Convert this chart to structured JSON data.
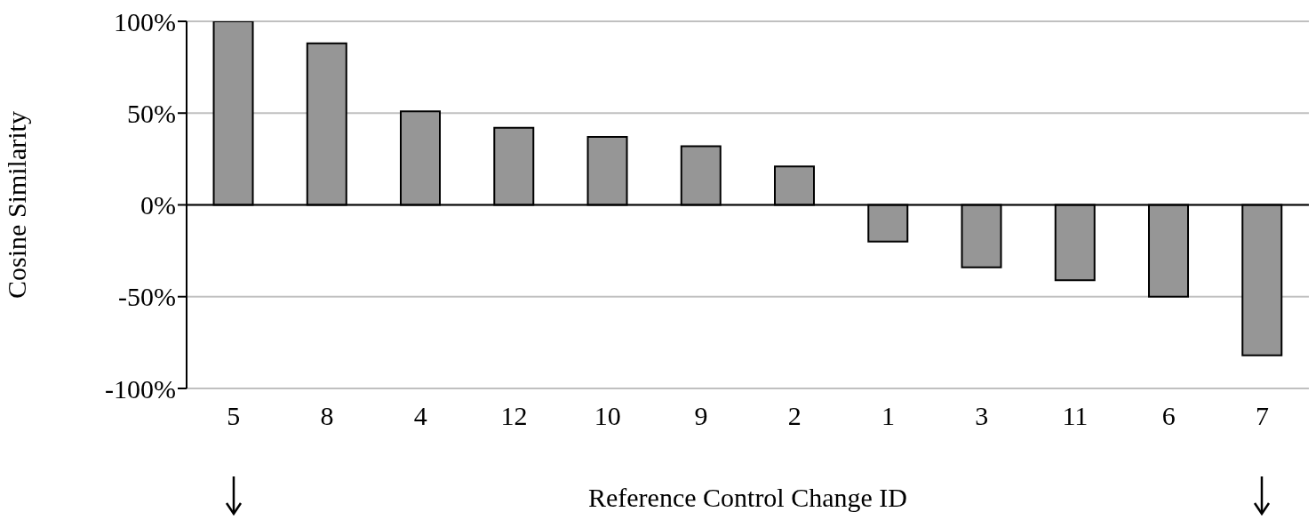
{
  "chart_data": {
    "type": "bar",
    "xlabel": "Reference Control Change ID",
    "ylabel": "Cosine Similarity",
    "categories": [
      "5",
      "8",
      "4",
      "12",
      "10",
      "9",
      "2",
      "1",
      "3",
      "11",
      "6",
      "7"
    ],
    "values": [
      100,
      88,
      51,
      42,
      37,
      32,
      21,
      -20,
      -34,
      -41,
      -50,
      -82
    ],
    "color": "#969696",
    "ylim": [
      -100,
      100
    ],
    "yticks": [
      {
        "value": -100,
        "label": "-100%"
      },
      {
        "value": -50,
        "label": "-50%"
      },
      {
        "value": 0,
        "label": "0%"
      },
      {
        "value": 50,
        "label": "50%"
      },
      {
        "value": 100,
        "label": "100%"
      }
    ],
    "grid": "y"
  }
}
